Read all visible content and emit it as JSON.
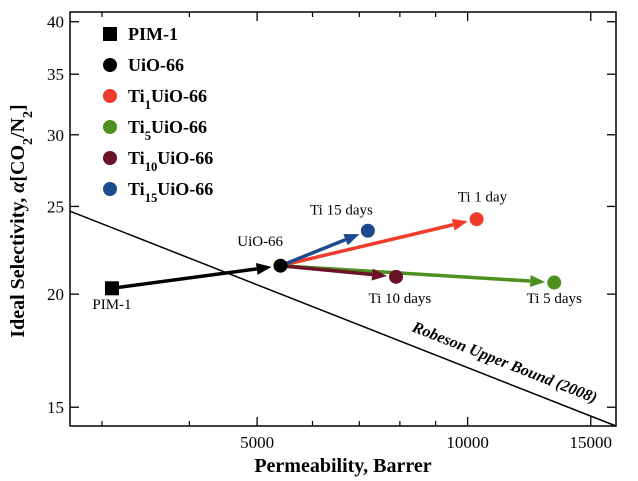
{
  "chart_data": {
    "type": "scatter",
    "x_scale": "log",
    "y_scale": "log",
    "xlabel": "Permeability, Barrer",
    "ylabel_parts": [
      {
        "t": "Ideal Selectivity, "
      },
      {
        "t": "α",
        "italic": true
      },
      {
        "t": "[CO"
      },
      {
        "t": "2",
        "sub": true
      },
      {
        "t": "/N"
      },
      {
        "t": "2",
        "sub": true
      },
      {
        "t": "]"
      }
    ],
    "xlim": [
      2700,
      16300
    ],
    "ylim": [
      14.3,
      41
    ],
    "x_ticks": [
      {
        "value": 5000,
        "label": "5000"
      },
      {
        "value": 10000,
        "label": "10000"
      },
      {
        "value": 15000,
        "label": "15000"
      }
    ],
    "x_minor_ticks": [
      3000,
      4000,
      6000,
      7000,
      8000,
      9000
    ],
    "y_ticks": [
      {
        "value": 15,
        "label": "15"
      },
      {
        "value": 20,
        "label": "20"
      },
      {
        "value": 25,
        "label": "25"
      },
      {
        "value": 30,
        "label": "30"
      },
      {
        "value": 35,
        "label": "35"
      },
      {
        "value": 40,
        "label": "40"
      }
    ],
    "grid": false,
    "legend_position": "top-left",
    "series": [
      {
        "key": "pim1",
        "legend_parts": [
          {
            "t": "PIM-1"
          }
        ],
        "color": "#000000",
        "marker": "square",
        "points": [
          {
            "x": 3100,
            "y": 20.3
          }
        ]
      },
      {
        "key": "uio66",
        "legend_parts": [
          {
            "t": "UiO-66"
          }
        ],
        "color": "#000000",
        "marker": "circle",
        "points": [
          {
            "x": 5400,
            "y": 21.5
          }
        ]
      },
      {
        "key": "ti1",
        "legend_parts": [
          {
            "t": "Ti"
          },
          {
            "t": "1",
            "sub": true
          },
          {
            "t": "UiO-66"
          }
        ],
        "color": "#f03c2a",
        "marker": "circle",
        "points": [
          {
            "x": 10300,
            "y": 24.2
          }
        ]
      },
      {
        "key": "ti5",
        "legend_parts": [
          {
            "t": "Ti"
          },
          {
            "t": "5",
            "sub": true
          },
          {
            "t": "UiO-66"
          }
        ],
        "color": "#4e8f22",
        "marker": "circle",
        "points": [
          {
            "x": 13300,
            "y": 20.6
          }
        ]
      },
      {
        "key": "ti10",
        "legend_parts": [
          {
            "t": "Ti"
          },
          {
            "t": "10",
            "sub": true
          },
          {
            "t": "UiO-66"
          }
        ],
        "color": "#6b1229",
        "marker": "circle",
        "points": [
          {
            "x": 7900,
            "y": 20.9
          }
        ]
      },
      {
        "key": "ti15",
        "legend_parts": [
          {
            "t": "Ti"
          },
          {
            "t": "15",
            "sub": true
          },
          {
            "t": "UiO-66"
          }
        ],
        "color": "#1d4a8c",
        "marker": "circle",
        "points": [
          {
            "x": 7200,
            "y": 23.5
          }
        ]
      }
    ],
    "arrows": [
      {
        "from": [
          3100,
          20.3
        ],
        "to": [
          5400,
          21.5
        ],
        "color": "#000000"
      },
      {
        "from": [
          5400,
          21.5
        ],
        "to": [
          10300,
          24.2
        ],
        "color": "#f03c2a"
      },
      {
        "from": [
          5400,
          21.5
        ],
        "to": [
          13300,
          20.6
        ],
        "color": "#4e8f22"
      },
      {
        "from": [
          5400,
          21.5
        ],
        "to": [
          7900,
          20.9
        ],
        "color": "#6b1229"
      },
      {
        "from": [
          5400,
          21.5
        ],
        "to": [
          7200,
          23.5
        ],
        "color": "#1d4a8c"
      }
    ],
    "upper_bound": {
      "label": "Robeson Upper Bound (2008)",
      "from": [
        2700,
        24.7
      ],
      "to": [
        16300,
        14.3
      ],
      "color": "#000000"
    },
    "annotations": [
      {
        "text": "PIM-1",
        "x": 3100,
        "y": 19.25,
        "anchor": "middle"
      },
      {
        "text": "UiO-66",
        "x": 5050,
        "y": 22.6,
        "anchor": "middle"
      },
      {
        "text": "Ti 15 days",
        "x": 6600,
        "y": 24.5,
        "anchor": "middle"
      },
      {
        "text": "Ti 1 day",
        "x": 10500,
        "y": 25.3,
        "anchor": "middle"
      },
      {
        "text": "Ti 10 days",
        "x": 8000,
        "y": 19.55,
        "anchor": "middle"
      },
      {
        "text": "Ti 5 days",
        "x": 13300,
        "y": 19.55,
        "anchor": "middle"
      }
    ]
  }
}
